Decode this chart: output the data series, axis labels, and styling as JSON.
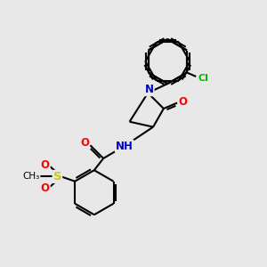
{
  "background_color": "#e8e8e8",
  "bond_color": "#000000",
  "atom_colors": {
    "N": "#0000cc",
    "O": "#ff0000",
    "Cl": "#00bb00",
    "S": "#cccc00",
    "C": "#000000"
  },
  "figsize": [
    3.0,
    3.0
  ],
  "dpi": 100
}
